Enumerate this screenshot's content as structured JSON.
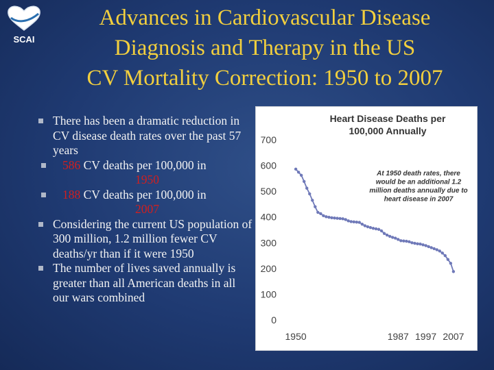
{
  "logo": {
    "text": "SCAI",
    "accent": "#2a6fb0"
  },
  "title": {
    "line1": "Advances in Cardiovascular Disease",
    "line2": "Diagnosis and Therapy  in the US",
    "line3": "CV Mortality Correction: 1950 to 2007"
  },
  "bullets": {
    "b1": "There has been a dramatic reduction in CV disease death rates over the past 57 years",
    "s1": {
      "num": "586",
      "text": " CV deaths per 100,000 in",
      "year": "1950"
    },
    "s2": {
      "num": "188",
      "text": " CV deaths per 100,000 in",
      "year": "2007"
    },
    "b2": "Considering the current US population of 300 million, 1.2 million fewer CV deaths/yr than if it were 1950",
    "b3": "The number of lives saved annually is greater than all American deaths in all our wars combined"
  },
  "colors": {
    "title": "#f2cf3e",
    "highlight": "#d11f1f",
    "series": "#6f79b8",
    "background": "#1f3a72"
  },
  "chart_data": {
    "type": "line",
    "title": "Heart Disease Deaths per 100,000 Annually",
    "xlabel": "",
    "ylabel": "",
    "ylim": [
      0,
      700
    ],
    "yticks": [
      0,
      100,
      200,
      300,
      400,
      500,
      600,
      700
    ],
    "xlim": [
      1947,
      2010
    ],
    "xticks": [
      1950,
      1987,
      1997,
      2007
    ],
    "xtick_labels": [
      "1950",
      "1987",
      "1997",
      "2007"
    ],
    "annotation": "At 1950 death rates, there would be an additional 1.2 million deaths annually due to heart disease in 2007",
    "series": [
      {
        "name": "Heart Disease Deaths",
        "x": [
          1950,
          1951,
          1952,
          1953,
          1954,
          1955,
          1956,
          1957,
          1958,
          1959,
          1960,
          1961,
          1962,
          1963,
          1964,
          1965,
          1966,
          1967,
          1968,
          1969,
          1970,
          1971,
          1972,
          1973,
          1974,
          1975,
          1976,
          1977,
          1978,
          1979,
          1980,
          1981,
          1982,
          1983,
          1984,
          1985,
          1986,
          1987,
          1988,
          1989,
          1990,
          1991,
          1992,
          1993,
          1994,
          1995,
          1996,
          1997,
          1998,
          1999,
          2000,
          2001,
          2002,
          2003,
          2004,
          2005,
          2006,
          2007
        ],
        "values": [
          586,
          574,
          562,
          538,
          512,
          490,
          465,
          440,
          418,
          413,
          405,
          401,
          399,
          397,
          396,
          395,
          394,
          393,
          390,
          385,
          382,
          381,
          380,
          379,
          372,
          366,
          362,
          359,
          356,
          354,
          352,
          346,
          336,
          330,
          325,
          321,
          318,
          313,
          308,
          307,
          306,
          304,
          300,
          298,
          296,
          295,
          292,
          289,
          285,
          281,
          277,
          273,
          268,
          260,
          250,
          235,
          220,
          188
        ]
      }
    ]
  }
}
